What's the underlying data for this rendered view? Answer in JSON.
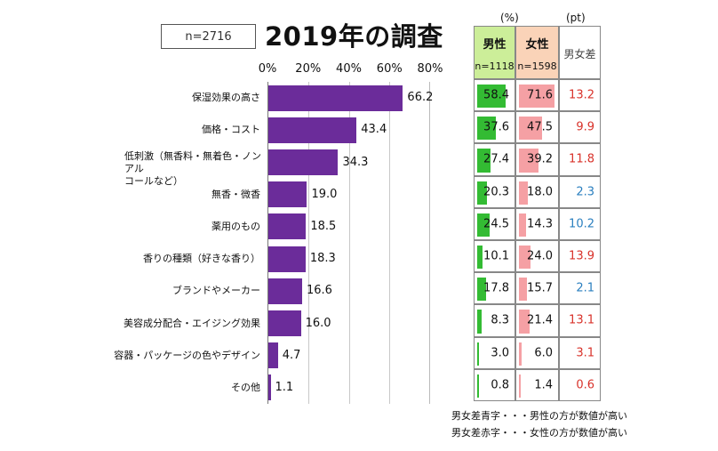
{
  "sample_box": "n=2716",
  "title": "2019年の調査",
  "unit_pct": "(%)",
  "unit_pt": "(pt)",
  "table_headers": {
    "male": "男性",
    "male_n": "n=1118",
    "female": "女性",
    "female_n": "n=1598",
    "diff": "男女差"
  },
  "colors": {
    "bar": "#6b2c9a",
    "male_bar": "#33bb33",
    "female_bar": "#f5a0a4",
    "male_header": "#ccee99",
    "female_header": "#fad3b8",
    "blue": "#2a7fbf",
    "red": "#d8322a"
  },
  "chart_data": {
    "type": "bar",
    "orientation": "horizontal",
    "title": "2019年の調査",
    "categories": [
      "保湿効果の高さ",
      "価格・コスト",
      "低刺激（無香料・無着色・ノンアルコールなど）",
      "無香・微香",
      "薬用のもの",
      "香りの種類（好きな香り）",
      "ブランドやメーカー",
      "美容成分配合・エイジング効果",
      "容器・パッケージの色やデザイン",
      "その他"
    ],
    "category_lines": [
      [
        "保湿効果の高さ"
      ],
      [
        "価格・コスト"
      ],
      [
        "低刺激（無香料・無着色・ノンアル",
        "コールなど）"
      ],
      [
        "無香・微香"
      ],
      [
        "薬用のもの"
      ],
      [
        "香りの種類（好きな香り）"
      ],
      [
        "ブランドやメーカー"
      ],
      [
        "美容成分配合・エイジング効果"
      ],
      [
        "容器・パッケージの色やデザイン"
      ],
      [
        "その他"
      ]
    ],
    "values": [
      66.2,
      43.4,
      34.3,
      19.0,
      18.5,
      18.3,
      16.6,
      16.0,
      4.7,
      1.1
    ],
    "xlim": [
      0,
      80
    ],
    "ticks": [
      "0%",
      "20%",
      "40%",
      "60%",
      "80%"
    ],
    "male": [
      58.4,
      37.6,
      27.4,
      20.3,
      24.5,
      10.1,
      17.8,
      8.3,
      3.0,
      0.8
    ],
    "female": [
      71.6,
      47.5,
      39.2,
      18.0,
      14.3,
      24.0,
      15.7,
      21.4,
      6.0,
      1.4
    ],
    "diff": [
      13.2,
      9.9,
      11.8,
      2.3,
      10.2,
      13.9,
      2.1,
      13.1,
      3.1,
      0.6
    ],
    "diff_color": [
      "red",
      "red",
      "red",
      "blue",
      "blue",
      "red",
      "blue",
      "red",
      "red",
      "red"
    ]
  },
  "notes": {
    "blue": "男女差青字・・・男性の方が数値が高い",
    "red": "男女差赤字・・・女性の方が数値が高い"
  }
}
